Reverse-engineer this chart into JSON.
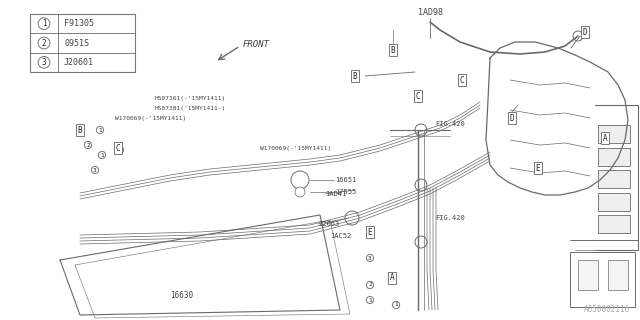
{
  "bg_color": "#ffffff",
  "line_color": "#6a6a6a",
  "text_color": "#444444",
  "part_number": "A050002116",
  "legend": [
    {
      "num": "1",
      "code": "F91305"
    },
    {
      "num": "2",
      "code": "0951S"
    },
    {
      "num": "3",
      "code": "J20601"
    }
  ],
  "figsize": [
    6.4,
    3.2
  ],
  "dpi": 100
}
